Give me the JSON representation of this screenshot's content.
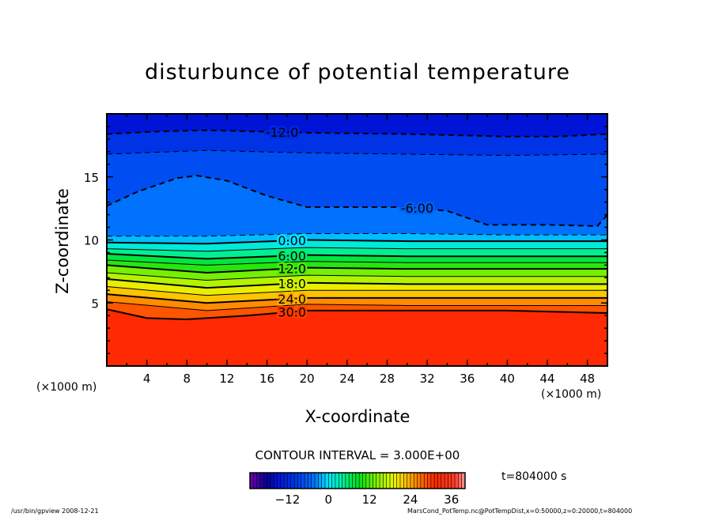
{
  "chart_data": {
    "type": "heatmap",
    "subtype": "filled-contour",
    "title": "disturbunce of potential temperature",
    "xlabel": "X-coordinate",
    "ylabel": "Z-coordinate",
    "x_unit_left": "(×1000 m)",
    "x_unit_right": "(×1000 m)",
    "xlim": [
      0,
      50
    ],
    "ylim": [
      0,
      20
    ],
    "xticks": [
      4,
      8,
      12,
      16,
      20,
      24,
      28,
      32,
      36,
      40,
      44,
      48
    ],
    "yticks": [
      5,
      10,
      15
    ],
    "contour_interval_text": "CONTOUR INTERVAL = 3.000E+00",
    "time_text": "t=804000 s",
    "colorbar": {
      "range": [
        -23,
        40
      ],
      "ticks": [
        -12,
        0,
        12,
        24,
        36
      ]
    },
    "contours": [
      {
        "level": -12,
        "label": "-12.0",
        "label_x": 17.5,
        "dashed": true,
        "bold": true,
        "points": [
          [
            0,
            18.4
          ],
          [
            5,
            18.6
          ],
          [
            10,
            18.7
          ],
          [
            15,
            18.6
          ],
          [
            20,
            18.5
          ],
          [
            30,
            18.4
          ],
          [
            40,
            18.2
          ],
          [
            45,
            18.2
          ],
          [
            50,
            18.4
          ]
        ]
      },
      {
        "level": -9,
        "label": "",
        "dashed": true,
        "bold": false,
        "points": [
          [
            0,
            16.8
          ],
          [
            10,
            17.1
          ],
          [
            20,
            16.9
          ],
          [
            30,
            16.8
          ],
          [
            40,
            16.7
          ],
          [
            50,
            16.8
          ]
        ]
      },
      {
        "level": -6,
        "label": "-6.00",
        "label_x": 31,
        "dashed": true,
        "bold": true,
        "points": [
          [
            0,
            12.7
          ],
          [
            3,
            13.8
          ],
          [
            7,
            14.9
          ],
          [
            9,
            15.1
          ],
          [
            12,
            14.7
          ],
          [
            16,
            13.5
          ],
          [
            20,
            12.6
          ],
          [
            25,
            12.6
          ],
          [
            30,
            12.6
          ],
          [
            34,
            12.3
          ],
          [
            38,
            11.2
          ],
          [
            44,
            11.2
          ],
          [
            49,
            11.1
          ],
          [
            50,
            12.0
          ]
        ]
      },
      {
        "level": -3,
        "label": "",
        "dashed": true,
        "bold": false,
        "points": [
          [
            0,
            10.3
          ],
          [
            10,
            10.3
          ],
          [
            20,
            10.5
          ],
          [
            30,
            10.5
          ],
          [
            40,
            10.4
          ],
          [
            50,
            10.4
          ]
        ]
      },
      {
        "level": 0,
        "label": "0.00",
        "label_x": 18.5,
        "dashed": false,
        "bold": true,
        "points": [
          [
            0,
            9.8
          ],
          [
            10,
            9.7
          ],
          [
            20,
            10.0
          ],
          [
            30,
            9.9
          ],
          [
            40,
            9.9
          ],
          [
            50,
            9.9
          ]
        ]
      },
      {
        "level": 3,
        "label": "",
        "dashed": false,
        "bold": false,
        "points": [
          [
            0,
            9.3
          ],
          [
            10,
            9.1
          ],
          [
            20,
            9.4
          ],
          [
            30,
            9.3
          ],
          [
            40,
            9.3
          ],
          [
            50,
            9.3
          ]
        ]
      },
      {
        "level": 6,
        "label": "6.00",
        "label_x": 18.5,
        "dashed": false,
        "bold": true,
        "points": [
          [
            0,
            8.9
          ],
          [
            10,
            8.5
          ],
          [
            20,
            8.8
          ],
          [
            30,
            8.7
          ],
          [
            40,
            8.7
          ],
          [
            50,
            8.7
          ]
        ]
      },
      {
        "level": 9,
        "label": "",
        "dashed": false,
        "bold": false,
        "points": [
          [
            0,
            8.4
          ],
          [
            10,
            8.0
          ],
          [
            20,
            8.3
          ],
          [
            30,
            8.2
          ],
          [
            40,
            8.2
          ],
          [
            50,
            8.2
          ]
        ]
      },
      {
        "level": 12,
        "label": "12.0",
        "label_x": 18.5,
        "dashed": false,
        "bold": true,
        "points": [
          [
            0,
            8.0
          ],
          [
            10,
            7.4
          ],
          [
            20,
            7.8
          ],
          [
            30,
            7.7
          ],
          [
            40,
            7.7
          ],
          [
            50,
            7.7
          ]
        ]
      },
      {
        "level": 15,
        "label": "",
        "dashed": false,
        "bold": false,
        "points": [
          [
            0,
            7.4
          ],
          [
            10,
            6.8
          ],
          [
            20,
            7.2
          ],
          [
            30,
            7.1
          ],
          [
            40,
            7.1
          ],
          [
            50,
            7.1
          ]
        ]
      },
      {
        "level": 18,
        "label": "18.0",
        "label_x": 18.5,
        "dashed": false,
        "bold": true,
        "points": [
          [
            0,
            6.9
          ],
          [
            10,
            6.2
          ],
          [
            20,
            6.6
          ],
          [
            30,
            6.5
          ],
          [
            40,
            6.5
          ],
          [
            50,
            6.5
          ]
        ]
      },
      {
        "level": 21,
        "label": "",
        "dashed": false,
        "bold": false,
        "points": [
          [
            0,
            6.3
          ],
          [
            10,
            5.6
          ],
          [
            20,
            6.0
          ],
          [
            30,
            6.0
          ],
          [
            40,
            6.0
          ],
          [
            50,
            6.0
          ]
        ]
      },
      {
        "level": 24,
        "label": "24.0",
        "label_x": 18.5,
        "dashed": false,
        "bold": true,
        "points": [
          [
            0,
            5.7
          ],
          [
            10,
            5.0
          ],
          [
            20,
            5.4
          ],
          [
            30,
            5.4
          ],
          [
            40,
            5.4
          ],
          [
            50,
            5.4
          ]
        ]
      },
      {
        "level": 27,
        "label": "",
        "dashed": false,
        "bold": false,
        "points": [
          [
            0,
            5.1
          ],
          [
            10,
            4.4
          ],
          [
            20,
            4.9
          ],
          [
            30,
            4.8
          ],
          [
            40,
            4.8
          ],
          [
            50,
            4.8
          ]
        ]
      },
      {
        "level": 30,
        "label": "30.0",
        "label_x": 18.5,
        "dashed": false,
        "bold": true,
        "points": [
          [
            0,
            4.5
          ],
          [
            4,
            3.8
          ],
          [
            8,
            3.7
          ],
          [
            14,
            4.0
          ],
          [
            20,
            4.4
          ],
          [
            30,
            4.4
          ],
          [
            40,
            4.4
          ],
          [
            50,
            4.2
          ]
        ]
      }
    ]
  },
  "footer": {
    "left": "/usr/bin/gpview   2008-12-21",
    "right": "MarsCond_PotTemp.nc@PotTempDist,x=0:50000,z=0:20000,t=804000"
  }
}
